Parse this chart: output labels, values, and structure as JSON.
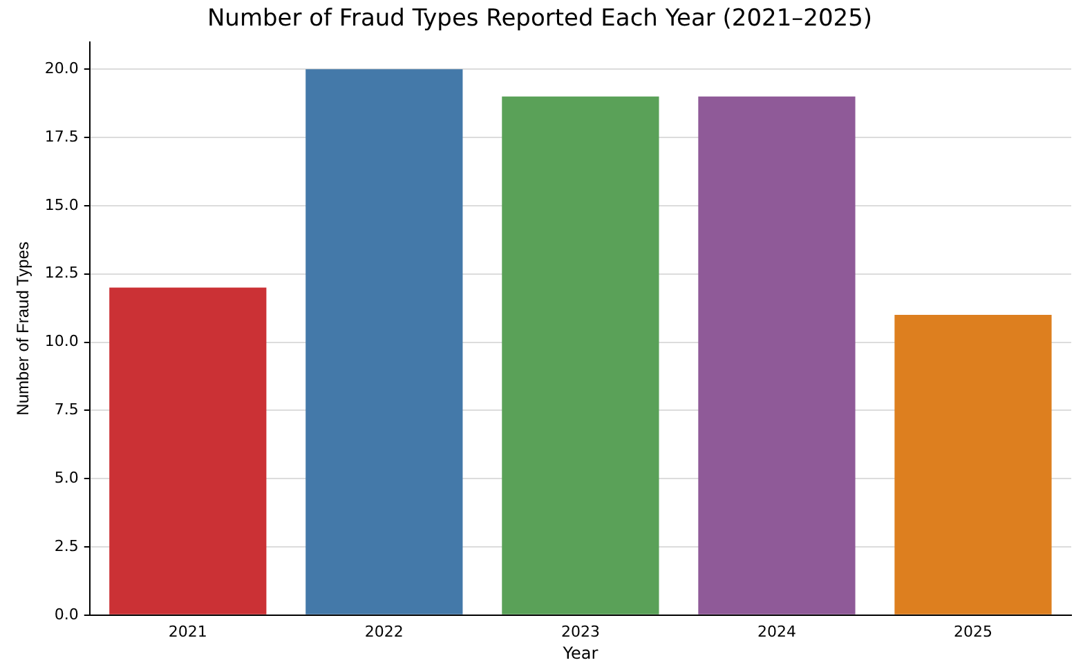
{
  "chart_data": {
    "type": "bar",
    "title": "Number of Fraud Types Reported Each Year (2021–2025)",
    "xlabel": "Year",
    "ylabel": "Number of Fraud Types",
    "categories": [
      "2021",
      "2022",
      "2023",
      "2024",
      "2025"
    ],
    "values": [
      12,
      20,
      19,
      19,
      11
    ],
    "colors": [
      "#cb3135",
      "#4479a9",
      "#5aa158",
      "#8f5a98",
      "#dd7f1f"
    ],
    "ylim": [
      0,
      21
    ],
    "yticks": [
      {
        "value": 0,
        "label": "0.0"
      },
      {
        "value": 2.5,
        "label": "2.5"
      },
      {
        "value": 5,
        "label": "5.0"
      },
      {
        "value": 7.5,
        "label": "7.5"
      },
      {
        "value": 10,
        "label": "10.0"
      },
      {
        "value": 12.5,
        "label": "12.5"
      },
      {
        "value": 15,
        "label": "15.0"
      },
      {
        "value": 17.5,
        "label": "17.5"
      },
      {
        "value": 20,
        "label": "20.0"
      }
    ],
    "grid": "y",
    "legend": false
  }
}
